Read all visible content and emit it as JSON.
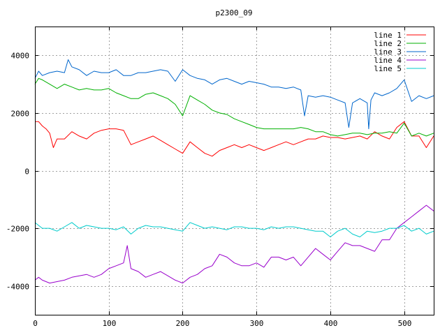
{
  "chart_data": {
    "type": "line",
    "title": "p2300_09",
    "xlabel": "",
    "ylabel": "",
    "xlim": [
      0,
      540
    ],
    "ylim": [
      -5000,
      5000
    ],
    "x_ticks": [
      0,
      100,
      200,
      300,
      400,
      500
    ],
    "y_ticks": [
      -4000,
      -2000,
      0,
      2000,
      4000
    ],
    "grid": true,
    "legend_position": "top-right",
    "series": [
      {
        "name": "line 1",
        "color": "#ff0000",
        "x": [
          0,
          5,
          10,
          15,
          20,
          25,
          30,
          40,
          50,
          60,
          70,
          80,
          90,
          100,
          110,
          120,
          130,
          140,
          150,
          160,
          170,
          180,
          190,
          200,
          210,
          220,
          230,
          240,
          250,
          260,
          270,
          280,
          290,
          300,
          310,
          320,
          330,
          340,
          350,
          360,
          370,
          380,
          390,
          400,
          410,
          420,
          430,
          440,
          450,
          460,
          470,
          480,
          490,
          500,
          510,
          520,
          530,
          540
        ],
        "values": [
          1700,
          1700,
          1550,
          1450,
          1300,
          800,
          1100,
          1100,
          1350,
          1200,
          1100,
          1300,
          1400,
          1450,
          1450,
          1400,
          900,
          1000,
          1100,
          1200,
          1050,
          900,
          750,
          600,
          1000,
          800,
          600,
          500,
          700,
          800,
          900,
          800,
          900,
          800,
          700,
          800,
          900,
          1000,
          900,
          1000,
          1100,
          1100,
          1200,
          1150,
          1150,
          1100,
          1150,
          1200,
          1100,
          1350,
          1200,
          1100,
          1500,
          1700,
          1200,
          1200,
          800,
          1200
        ]
      },
      {
        "name": "line 2",
        "color": "#00b000",
        "x": [
          0,
          5,
          10,
          20,
          30,
          40,
          50,
          60,
          70,
          80,
          90,
          100,
          110,
          120,
          130,
          140,
          150,
          160,
          170,
          180,
          190,
          200,
          210,
          220,
          230,
          240,
          250,
          260,
          270,
          280,
          290,
          300,
          310,
          320,
          330,
          340,
          350,
          360,
          370,
          380,
          390,
          400,
          410,
          420,
          430,
          440,
          450,
          460,
          470,
          480,
          490,
          500,
          510,
          520,
          530,
          540
        ],
        "values": [
          3000,
          3200,
          3150,
          3000,
          2850,
          3000,
          2900,
          2800,
          2850,
          2800,
          2800,
          2850,
          2700,
          2600,
          2500,
          2500,
          2650,
          2700,
          2600,
          2500,
          2300,
          1900,
          2600,
          2450,
          2300,
          2100,
          2000,
          1950,
          1800,
          1700,
          1600,
          1500,
          1450,
          1450,
          1450,
          1450,
          1450,
          1500,
          1450,
          1350,
          1350,
          1250,
          1200,
          1250,
          1300,
          1300,
          1250,
          1300,
          1300,
          1350,
          1300,
          1650,
          1200,
          1300,
          1200,
          1300
        ]
      },
      {
        "name": "line 3",
        "color": "#0066cc",
        "x": [
          0,
          5,
          10,
          20,
          30,
          40,
          45,
          50,
          60,
          70,
          80,
          90,
          100,
          110,
          120,
          130,
          140,
          150,
          160,
          170,
          180,
          190,
          200,
          210,
          220,
          230,
          240,
          250,
          260,
          270,
          280,
          290,
          300,
          310,
          320,
          330,
          340,
          350,
          360,
          365,
          370,
          380,
          390,
          400,
          410,
          420,
          425,
          430,
          440,
          450,
          452,
          455,
          460,
          470,
          480,
          490,
          500,
          510,
          520,
          530,
          540
        ],
        "values": [
          3200,
          3450,
          3300,
          3400,
          3450,
          3400,
          3850,
          3600,
          3500,
          3300,
          3450,
          3400,
          3400,
          3500,
          3300,
          3300,
          3400,
          3400,
          3450,
          3500,
          3450,
          3100,
          3500,
          3300,
          3200,
          3150,
          3000,
          3150,
          3200,
          3100,
          3000,
          3100,
          3050,
          3000,
          2900,
          2900,
          2850,
          2900,
          2800,
          1900,
          2600,
          2550,
          2600,
          2550,
          2450,
          2350,
          1500,
          2350,
          2500,
          2350,
          1450,
          2450,
          2700,
          2600,
          2700,
          2850,
          3150,
          2400,
          2600,
          2500,
          2600
        ]
      },
      {
        "name": "line 4",
        "color": "#9900cc",
        "x": [
          0,
          5,
          10,
          20,
          30,
          40,
          50,
          60,
          70,
          80,
          90,
          100,
          110,
          120,
          125,
          130,
          140,
          150,
          160,
          170,
          180,
          190,
          200,
          210,
          220,
          230,
          240,
          250,
          260,
          270,
          280,
          290,
          300,
          310,
          320,
          330,
          340,
          350,
          360,
          370,
          380,
          390,
          400,
          410,
          420,
          430,
          440,
          450,
          460,
          470,
          480,
          490,
          500,
          510,
          520,
          530,
          540
        ],
        "values": [
          -3800,
          -3700,
          -3800,
          -3900,
          -3850,
          -3800,
          -3700,
          -3650,
          -3600,
          -3700,
          -3600,
          -3400,
          -3300,
          -3200,
          -2600,
          -3400,
          -3500,
          -3700,
          -3600,
          -3500,
          -3650,
          -3800,
          -3900,
          -3700,
          -3600,
          -3400,
          -3300,
          -2900,
          -3000,
          -3200,
          -3300,
          -3300,
          -3200,
          -3350,
          -3000,
          -3000,
          -3100,
          -3000,
          -3300,
          -3000,
          -2700,
          -2900,
          -3100,
          -2800,
          -2500,
          -2600,
          -2600,
          -2700,
          -2800,
          -2400,
          -2400,
          -2000,
          -1800,
          -1600,
          -1400,
          -1200,
          -1400
        ]
      },
      {
        "name": "line 5",
        "color": "#00cccc",
        "x": [
          0,
          5,
          10,
          20,
          30,
          40,
          50,
          60,
          70,
          80,
          90,
          100,
          110,
          120,
          130,
          140,
          150,
          160,
          170,
          180,
          190,
          200,
          210,
          220,
          230,
          240,
          250,
          260,
          270,
          280,
          290,
          300,
          310,
          320,
          330,
          340,
          350,
          360,
          370,
          380,
          390,
          400,
          410,
          420,
          430,
          440,
          450,
          460,
          470,
          480,
          490,
          500,
          510,
          520,
          530,
          540
        ],
        "values": [
          -1800,
          -1900,
          -2000,
          -2000,
          -2100,
          -1950,
          -1800,
          -2000,
          -1900,
          -1950,
          -2000,
          -2000,
          -2050,
          -1950,
          -2200,
          -2000,
          -1900,
          -1950,
          -1950,
          -2000,
          -2050,
          -2100,
          -1800,
          -1900,
          -2000,
          -1950,
          -2000,
          -2050,
          -1950,
          -1950,
          -2000,
          -2000,
          -2050,
          -1950,
          -2000,
          -1950,
          -1950,
          -2000,
          -2050,
          -2100,
          -2100,
          -2300,
          -2100,
          -2000,
          -2200,
          -2300,
          -2100,
          -2150,
          -2100,
          -2000,
          -2000,
          -1900,
          -2100,
          -2000,
          -2200,
          -2100
        ]
      }
    ]
  }
}
